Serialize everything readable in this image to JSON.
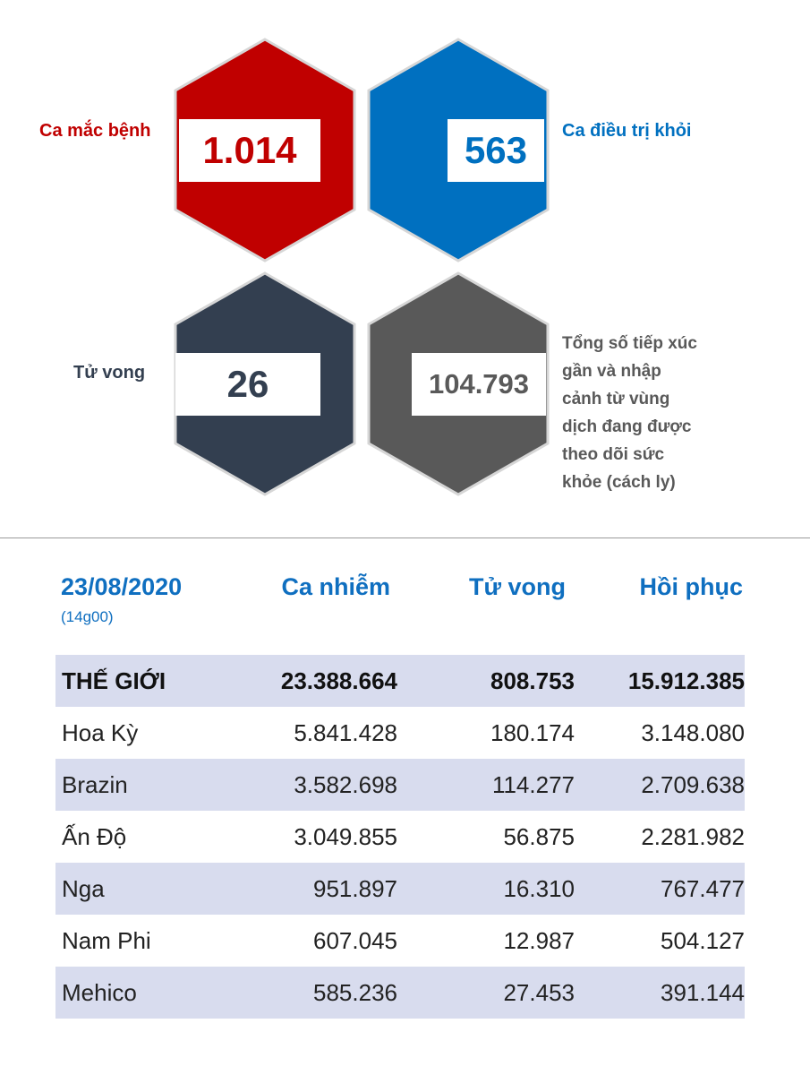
{
  "stats": {
    "cases_label": "Ca mắc bệnh",
    "cases_value": "1.014",
    "recovered_label": "Ca điều trị khỏi",
    "recovered_value": "563",
    "deaths_label": "Tử vong",
    "deaths_value": "26",
    "monitored_label_lines": [
      "Tổng số tiếp xúc",
      "gần và nhập",
      "cảnh từ vùng",
      "dịch đang được",
      "theo dõi sức",
      "khỏe (cách ly)"
    ],
    "monitored_value": "104.793",
    "colors": {
      "cases": "#c00000",
      "recovered": "#0070c0",
      "deaths": "#333f50",
      "monitored": "#595959"
    }
  },
  "world_table": {
    "date": "23/08/2020",
    "time": "(14g00)",
    "headers": [
      "Ca nhiễm",
      "Tử vong",
      "Hồi phục"
    ],
    "rows": [
      [
        "THẾ GIỚI",
        "23.388.664",
        "808.753",
        "15.912.385"
      ],
      [
        "Hoa Kỳ",
        "5.841.428",
        "180.174",
        "3.148.080"
      ],
      [
        "Brazin",
        "3.582.698",
        "114.277",
        "2.709.638"
      ],
      [
        "Ấn Độ",
        "3.049.855",
        "56.875",
        "2.281.982"
      ],
      [
        "Nga",
        "951.897",
        "16.310",
        "767.477"
      ],
      [
        "Nam Phi",
        "607.045",
        "12.987",
        "504.127"
      ],
      [
        "Mehico",
        "585.236",
        "27.453",
        "391.144"
      ]
    ],
    "colors": {
      "header": "#0f6fc0",
      "shade": "#d8dcee"
    }
  }
}
